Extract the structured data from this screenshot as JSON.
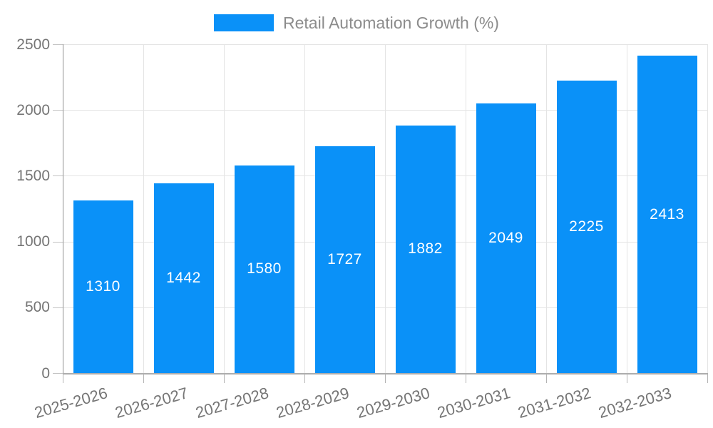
{
  "chart_data": {
    "type": "bar",
    "legend_label": "Retail Automation Growth (%)",
    "categories": [
      "2025-2026",
      "2026-2027",
      "2027-2028",
      "2028-2029",
      "2029-2030",
      "2030-2031",
      "2031-2032",
      "2032-2033"
    ],
    "values": [
      1310,
      1442,
      1580,
      1727,
      1882,
      2049,
      2225,
      2413
    ],
    "title": "",
    "xlabel": "",
    "ylabel": "",
    "ylim": [
      0,
      2500
    ],
    "ytick_step": 500,
    "ytick_labels": [
      "0",
      "500",
      "1000",
      "1500",
      "2000",
      "2500"
    ],
    "grid": true,
    "legend_position": "top",
    "x_label_rotation_deg": -16,
    "colors": {
      "bar": "#0a91f8",
      "value_label": "#ffffff",
      "axis_label": "#757575",
      "legend_text": "#8c8c8c",
      "gridline": "#e4e4e4",
      "axis_line": "#909090"
    }
  }
}
